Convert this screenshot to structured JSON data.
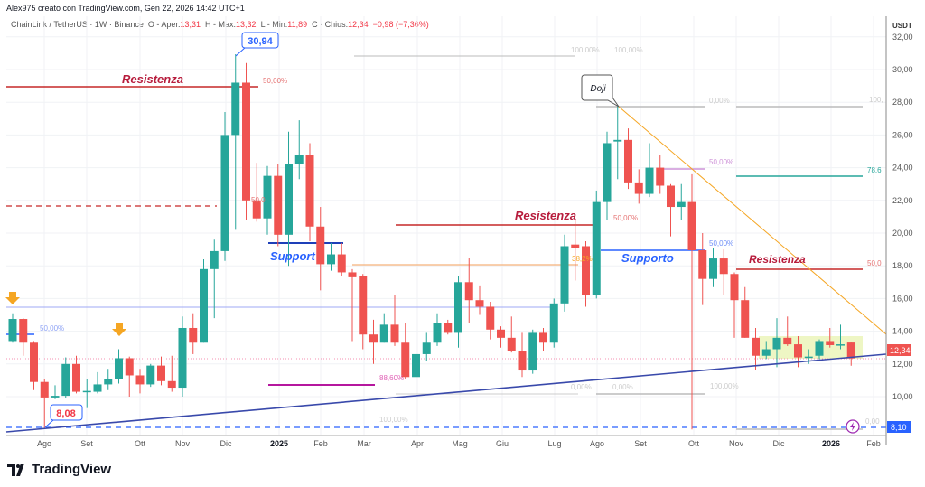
{
  "header": {
    "credit": "Alex975 creato con TradingView.com, Gen 22, 2026 14:42 UTC+1",
    "symbol": "ChainLink / TetherUS · 1W · Binance",
    "open_label": "O - Aper.",
    "open": "13,31",
    "high_label": "H - Max.",
    "high": "13,32",
    "low_label": "L - Min.",
    "low": "11,89",
    "close_label": "C - Chius.",
    "close": "12,34",
    "change": "−0,98 (−7,36%)"
  },
  "price_axis": {
    "currency": "USDT",
    "ticks": [
      "32,00",
      "30,00",
      "28,00",
      "26,00",
      "24,00",
      "22,00",
      "20,00",
      "18,00",
      "16,00",
      "14,00",
      "12,00",
      "10,00"
    ],
    "tick_values": [
      32,
      30,
      28,
      26,
      24,
      22,
      20,
      18,
      16,
      14,
      12,
      10
    ],
    "last_price_label": "12,34",
    "last_price": 12.34,
    "marker_label": "8,10",
    "marker_price": 8.1
  },
  "time_axis": {
    "labels": [
      "Ago",
      "Set",
      "Ott",
      "Nov",
      "Dic",
      "2025",
      "Feb",
      "Mar",
      "Apr",
      "Mag",
      "Giu",
      "Lug",
      "Ago",
      "Set",
      "Ott",
      "Nov",
      "Dic",
      "2026",
      "Feb"
    ],
    "bold": [
      "2025",
      "2026"
    ]
  },
  "colors": {
    "up": "#26a69a",
    "down": "#ef5350",
    "resistance": "#c2185b",
    "support": "#2962ff",
    "trend": "#3949ab",
    "downtrend": "#f5a623",
    "range_box": "#eef6c4"
  },
  "annotations": {
    "resistenza_1": "Resistenza",
    "resistenza_2": "Resistenza",
    "resistenza_3": "Resistenza",
    "support_1": "Support",
    "supporto_2": "Supporto",
    "doji": "Doji",
    "high_callout": "30,94",
    "low_callout": "8,08",
    "fib_50_red": "50,00%",
    "fib_50_red_dashed": "50,0",
    "fib_50_blue_left": "50,00%",
    "fib_886": "88,60%",
    "fib_100_a": "100,00%",
    "fib_100_b": "100,00%",
    "fib_100_c": "100,00%",
    "fib_100_d": "100,00%",
    "fib_100_e": "100,",
    "fib_0_a": "0,00%",
    "fib_0_b": "0,00%",
    "fib_0_c": "0,00%",
    "fib_0_d": "0,00",
    "fib_382": "38,2%",
    "fib_50_red_2": "50,00%",
    "fib_50_purple": "50,00%",
    "fib_50_blue_right": "50,00%",
    "fib_786": "78,6",
    "fib_50_red_right": "50,0"
  },
  "chart_data": {
    "type": "candlestick",
    "interval": "1W",
    "ohlc": [
      [
        13.4,
        15.1,
        13.3,
        14.75
      ],
      [
        14.75,
        14.8,
        12.5,
        13.3
      ],
      [
        13.3,
        13.4,
        10.4,
        10.9
      ],
      [
        10.9,
        11.1,
        8.08,
        9.95
      ],
      [
        9.95,
        10.7,
        9.85,
        10.05
      ],
      [
        10.05,
        12.4,
        9.9,
        12.0
      ],
      [
        12.0,
        12.5,
        10.2,
        10.3
      ],
      [
        10.3,
        11.1,
        9.3,
        10.35
      ],
      [
        10.3,
        11.5,
        10.2,
        10.75
      ],
      [
        10.75,
        11.7,
        10.4,
        11.1
      ],
      [
        11.1,
        12.9,
        10.8,
        12.35
      ],
      [
        12.35,
        12.45,
        10.0,
        11.3
      ],
      [
        11.3,
        11.7,
        10.2,
        10.75
      ],
      [
        10.75,
        12.0,
        10.6,
        11.9
      ],
      [
        11.9,
        12.45,
        10.7,
        10.95
      ],
      [
        10.95,
        12.5,
        10.3,
        10.55
      ],
      [
        10.55,
        14.9,
        10.0,
        14.2
      ],
      [
        14.2,
        15.1,
        12.6,
        13.3
      ],
      [
        13.3,
        18.4,
        13.3,
        17.8
      ],
      [
        17.8,
        19.6,
        14.8,
        18.9
      ],
      [
        18.9,
        27.4,
        18.3,
        26.0
      ],
      [
        26.0,
        30.94,
        20.2,
        29.2
      ],
      [
        29.2,
        30.4,
        20.8,
        22.0
      ],
      [
        22.0,
        24.3,
        20.7,
        20.9
      ],
      [
        20.9,
        24.1,
        19.9,
        23.5
      ],
      [
        23.5,
        24.2,
        19.2,
        19.9
      ],
      [
        19.9,
        26.2,
        18.0,
        24.2
      ],
      [
        24.2,
        26.9,
        23.3,
        24.8
      ],
      [
        24.8,
        25.5,
        19.5,
        20.4
      ],
      [
        20.4,
        21.6,
        16.5,
        18.1
      ],
      [
        18.1,
        19.4,
        17.7,
        18.7
      ],
      [
        18.7,
        19.4,
        17.4,
        17.6
      ],
      [
        17.6,
        17.8,
        13.4,
        17.3
      ],
      [
        17.4,
        17.5,
        12.9,
        13.8
      ],
      [
        13.8,
        14.7,
        12.0,
        13.3
      ],
      [
        13.3,
        15.1,
        13.3,
        14.4
      ],
      [
        14.4,
        16.2,
        13.1,
        13.3
      ],
      [
        13.3,
        14.5,
        11.1,
        11.2
      ],
      [
        11.2,
        12.8,
        10.2,
        12.6
      ],
      [
        12.6,
        13.9,
        12.2,
        13.3
      ],
      [
        13.3,
        15.1,
        13.1,
        14.5
      ],
      [
        14.5,
        14.7,
        13.8,
        13.9
      ],
      [
        13.9,
        17.4,
        13.0,
        17.0
      ],
      [
        17.0,
        18.5,
        14.5,
        15.9
      ],
      [
        15.9,
        16.8,
        15.0,
        15.5
      ],
      [
        15.5,
        15.8,
        13.5,
        14.1
      ],
      [
        14.1,
        14.3,
        13.0,
        13.6
      ],
      [
        13.6,
        14.9,
        12.7,
        12.8
      ],
      [
        12.8,
        13.9,
        11.2,
        11.6
      ],
      [
        11.6,
        14.1,
        11.4,
        13.9
      ],
      [
        13.9,
        14.2,
        12.8,
        13.3
      ],
      [
        13.3,
        16.0,
        13.0,
        15.7
      ],
      [
        15.7,
        19.9,
        15.2,
        19.2
      ],
      [
        19.3,
        20.8,
        17.1,
        19.1
      ],
      [
        19.2,
        19.5,
        15.5,
        16.2
      ],
      [
        16.2,
        22.6,
        16.0,
        21.9
      ],
      [
        21.9,
        26.2,
        20.8,
        25.5
      ],
      [
        25.6,
        27.8,
        23.3,
        25.7
      ],
      [
        25.7,
        26.4,
        22.7,
        23.1
      ],
      [
        23.1,
        23.9,
        21.8,
        22.4
      ],
      [
        22.4,
        25.5,
        22.2,
        24.0
      ],
      [
        24.0,
        24.8,
        22.4,
        22.9
      ],
      [
        22.9,
        23.0,
        19.8,
        21.6
      ],
      [
        21.6,
        23.0,
        20.8,
        21.9
      ],
      [
        21.9,
        23.6,
        8.0,
        18.95
      ],
      [
        18.95,
        20.0,
        15.6,
        17.2
      ],
      [
        17.2,
        19.1,
        16.7,
        18.45
      ],
      [
        18.45,
        19.0,
        16.2,
        17.5
      ],
      [
        17.5,
        17.6,
        13.6,
        15.9
      ],
      [
        15.9,
        16.7,
        13.6,
        13.6
      ],
      [
        13.6,
        14.2,
        11.6,
        12.5
      ],
      [
        12.5,
        13.4,
        12.3,
        12.9
      ],
      [
        12.9,
        14.8,
        11.8,
        13.6
      ],
      [
        13.6,
        14.9,
        13.1,
        13.2
      ],
      [
        13.2,
        13.7,
        11.8,
        12.4
      ],
      [
        12.4,
        12.9,
        12.0,
        12.45
      ],
      [
        12.5,
        13.5,
        12.3,
        13.4
      ],
      [
        13.4,
        14.2,
        13.0,
        13.15
      ],
      [
        13.15,
        14.4,
        12.9,
        13.2
      ],
      [
        13.31,
        13.32,
        11.89,
        12.34
      ]
    ],
    "ylim": [
      7.5,
      33
    ]
  }
}
